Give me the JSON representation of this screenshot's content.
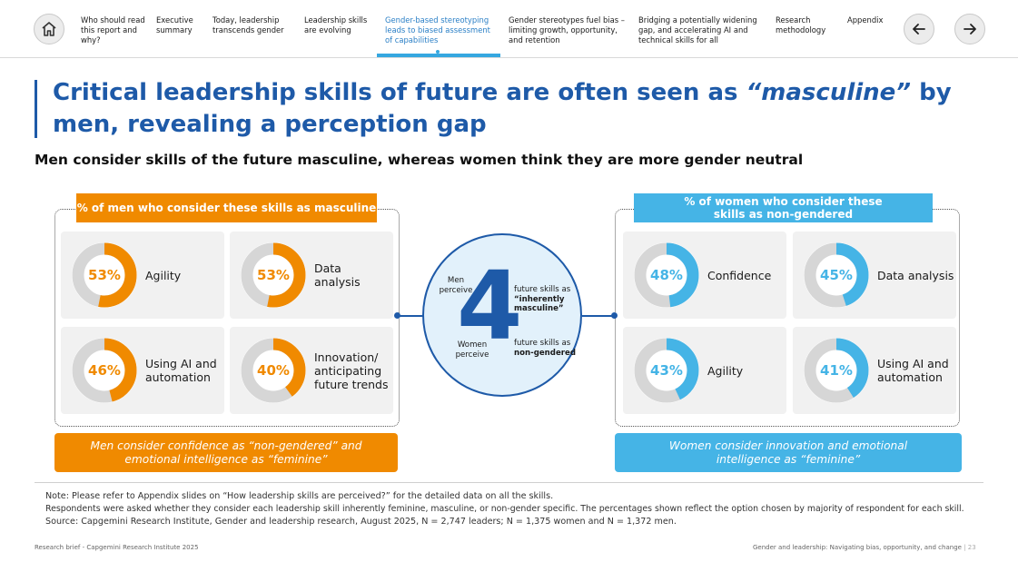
{
  "nav": {
    "items": [
      "Who should read this report and why?",
      "Executive summary",
      "Today, leadership transcends gender",
      "Leadership skills are evolving",
      "Gender-based stereotyping leads to biased assessment of capabilities",
      "Gender stereotypes fuel bias – limiting growth, opportunity, and retention",
      "Bridging a potentially widening gap, and accelerating AI and technical skills for all",
      "Research methodology",
      "Appendix"
    ],
    "active_index": 4
  },
  "title": {
    "part1": "Critical leadership skills of future are often seen as ",
    "emph": "“masculine”",
    "part2": " by men, revealing a perception gap"
  },
  "subtitle": "Men consider skills of the future masculine, whereas women think they are more gender neutral",
  "left": {
    "header": "% of men who consider these skills as masculine",
    "cards": [
      {
        "pct": "53%",
        "value": 53,
        "label": "Agility"
      },
      {
        "pct": "53%",
        "value": 53,
        "label": "Data analysis"
      },
      {
        "pct": "46%",
        "value": 46,
        "label": "Using AI and automation"
      },
      {
        "pct": "40%",
        "value": 40,
        "label": "Innovation/ anticipating future trends"
      }
    ],
    "note": "Men consider confidence as “non-gendered” and emotional intelligence as “feminine”"
  },
  "right": {
    "header": "% of women who consider these skills as non-gendered",
    "cards": [
      {
        "pct": "48%",
        "value": 48,
        "label": "Confidence"
      },
      {
        "pct": "45%",
        "value": 45,
        "label": "Data analysis"
      },
      {
        "pct": "43%",
        "value": 43,
        "label": "Agility"
      },
      {
        "pct": "41%",
        "value": 41,
        "label": "Using AI and automation"
      }
    ],
    "note": "Women consider innovation and emotional intelligence as “feminine”"
  },
  "center": {
    "number": "4",
    "men_label": "Men perceive",
    "men_text_a": "future skills as",
    "men_text_b": "“inherently masculine”",
    "women_label": "Women perceive",
    "women_text_a": "future skills as",
    "women_text_b": "non-gendered"
  },
  "footnotes": {
    "line1": "Note: Please refer to Appendix slides on “How leadership skills are perceived?” for the detailed data on all the skills.",
    "line2": "Respondents were asked whether they consider each leadership skill inherently feminine, masculine, or non-gender specific. The percentages shown reflect the option chosen by majority of respondent for each skill.",
    "line3": "Source: Capgemini Research Institute, Gender and leadership research, August 2025, N = 2,747 leaders; N = 1,375 women and N = 1,372 men."
  },
  "footer": {
    "left": "Research brief - Capgemini Research Institute 2025",
    "right": "Gender and leadership: Navigating bias, opportunity, and change",
    "page": "23"
  },
  "colors": {
    "orange": "#f08a00",
    "blue": "#45b4e6",
    "navy": "#1e5aa8",
    "track": "#d6d6d6"
  }
}
